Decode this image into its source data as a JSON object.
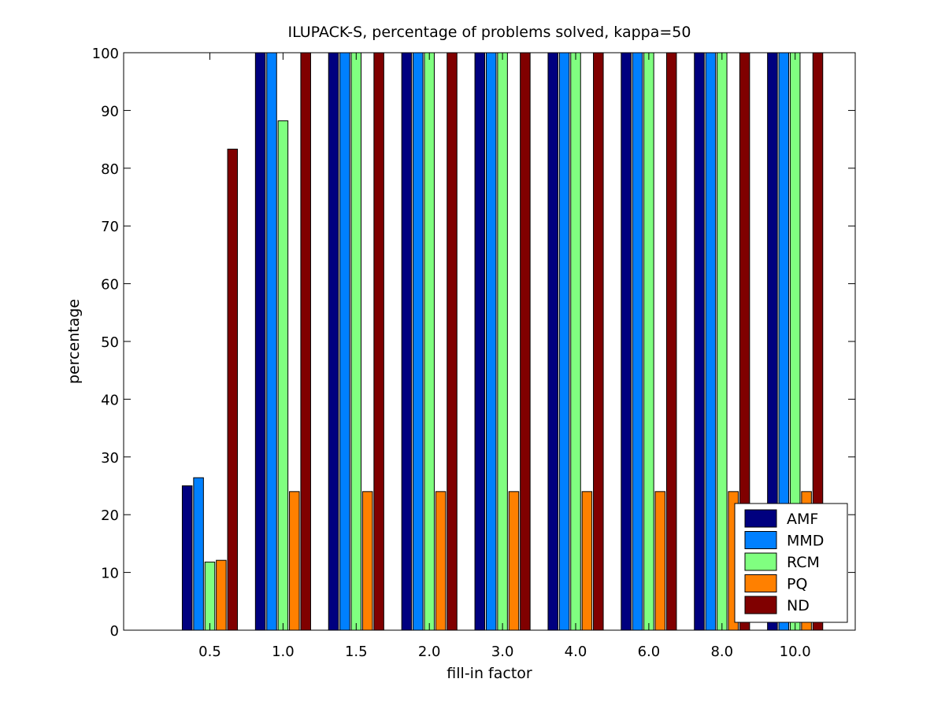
{
  "chart_data": {
    "type": "bar",
    "title": "ILUPACK-S, percentage of problems solved, kappa=50",
    "xlabel": "fill-in factor",
    "ylabel": "percentage",
    "ylim": [
      0,
      100
    ],
    "yticks": [
      0,
      10,
      20,
      30,
      40,
      50,
      60,
      70,
      80,
      90,
      100
    ],
    "categories": [
      "0.5",
      "1.0",
      "1.5",
      "2.0",
      "3.0",
      "4.0",
      "6.0",
      "8.0",
      "10.0"
    ],
    "grid": false,
    "legend_position": "bottom-right",
    "series": [
      {
        "name": "AMF",
        "color": "#00007f",
        "values": [
          25,
          100,
          100,
          100,
          100,
          100,
          100,
          100,
          100
        ]
      },
      {
        "name": "MMD",
        "color": "#0080ff",
        "values": [
          26.4,
          100,
          100,
          100,
          100,
          100,
          100,
          100,
          100
        ]
      },
      {
        "name": "RCM",
        "color": "#80ff80",
        "values": [
          11.8,
          88.2,
          100,
          100,
          100,
          100,
          100,
          100,
          100
        ]
      },
      {
        "name": "PQ",
        "color": "#ff8000",
        "values": [
          12.1,
          24,
          24,
          24,
          24,
          24,
          24,
          24,
          24
        ]
      },
      {
        "name": "ND",
        "color": "#800000",
        "values": [
          83.3,
          100,
          100,
          100,
          100,
          100,
          100,
          100,
          100
        ]
      }
    ]
  }
}
